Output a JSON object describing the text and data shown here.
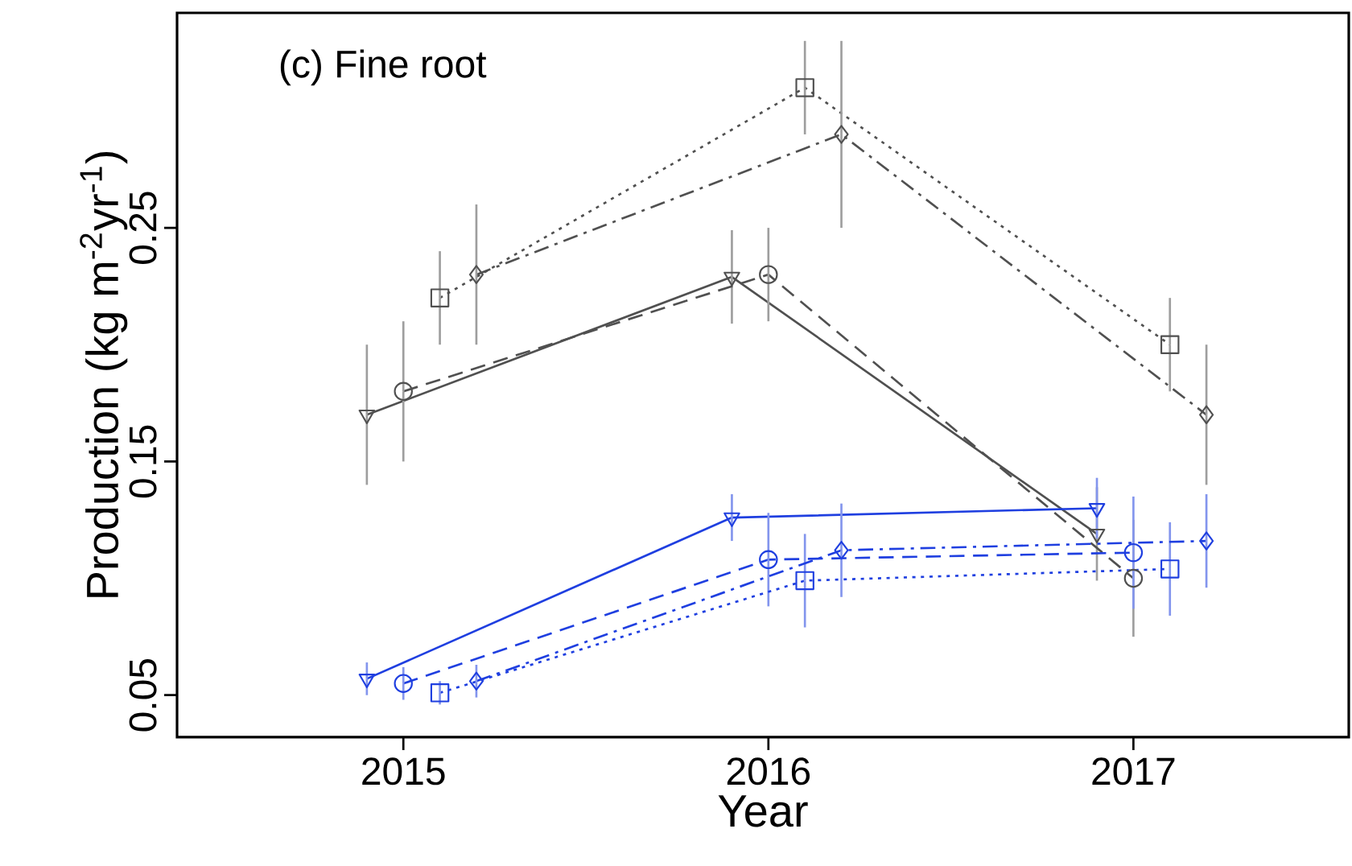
{
  "chart_data": {
    "type": "line",
    "title": "(c) Fine root",
    "xlabel": "Year",
    "ylabel": "Production (kg m$^{-2}$yr$^{-1}$)",
    "xlim": [
      2014.38,
      2017.59
    ],
    "ylim": [
      0.032,
      0.342
    ],
    "xticks": [
      2015,
      2016,
      2017
    ],
    "yticks": [
      0.05,
      0.15,
      0.25
    ],
    "grid": false,
    "series": [
      {
        "color": "#505050",
        "marker": "triangle",
        "line_style": "solid",
        "x": [
          2014.9,
          2015.9,
          2016.9
        ],
        "values": [
          0.17,
          0.229,
          0.119
        ],
        "errors": [
          0.03,
          0.02,
          0.02
        ]
      },
      {
        "color": "#505050",
        "marker": "circle",
        "line_style": "dashed",
        "x": [
          2015,
          2016,
          2017
        ],
        "values": [
          0.18,
          0.23,
          0.1
        ],
        "errors": [
          0.03,
          0.02,
          0.025
        ]
      },
      {
        "color": "#505050",
        "marker": "square",
        "line_style": "dotted",
        "x": [
          2015.1,
          2016.1,
          2017.1
        ],
        "values": [
          0.22,
          0.31,
          0.2
        ],
        "errors": [
          0.02,
          0.02,
          0.02
        ]
      },
      {
        "color": "#505050",
        "marker": "diamond",
        "line_style": "dashdot",
        "x": [
          2015.2,
          2016.2,
          2017.2
        ],
        "values": [
          0.23,
          0.29,
          0.17
        ],
        "errors": [
          0.03,
          0.04,
          0.03
        ]
      },
      {
        "color": "#1f3fe0",
        "marker": "triangle",
        "line_style": "solid",
        "x": [
          2014.9,
          2015.9,
          2016.9
        ],
        "values": [
          0.057,
          0.126,
          0.13
        ],
        "errors": [
          0.007,
          0.01,
          0.013
        ]
      },
      {
        "color": "#1f3fe0",
        "marker": "circle",
        "line_style": "dashed",
        "x": [
          2015,
          2016,
          2017
        ],
        "values": [
          0.055,
          0.108,
          0.111
        ],
        "errors": [
          0.007,
          0.02,
          0.024
        ]
      },
      {
        "color": "#1f3fe0",
        "marker": "square",
        "line_style": "dotted",
        "x": [
          2015.1,
          2016.1,
          2017.1
        ],
        "values": [
          0.051,
          0.099,
          0.104
        ],
        "errors": [
          0.005,
          0.02,
          0.02
        ]
      },
      {
        "color": "#1f3fe0",
        "marker": "diamond",
        "line_style": "dashdot",
        "x": [
          2015.2,
          2016.2,
          2017.2
        ],
        "values": [
          0.056,
          0.112,
          0.116
        ],
        "errors": [
          0.007,
          0.02,
          0.02
        ]
      }
    ]
  }
}
